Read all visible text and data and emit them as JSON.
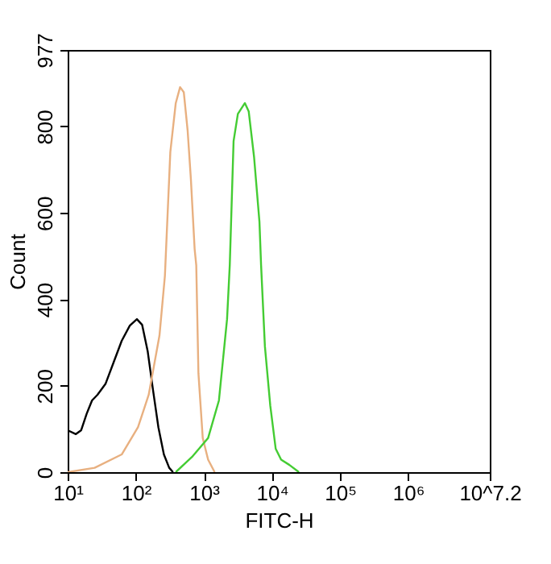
{
  "chart_data": {
    "type": "line",
    "xlabel": "FITC-H",
    "ylabel": "Count",
    "log": "x",
    "grid": false,
    "legend": false,
    "marker": "none",
    "line_style": "solid",
    "xlim": [
      10,
      15848932
    ],
    "ylim": [
      0,
      977
    ],
    "xticks": [
      {
        "value": 10,
        "label": "10¹"
      },
      {
        "value": 100,
        "label": "10²"
      },
      {
        "value": 1000,
        "label": "10³"
      },
      {
        "value": 10000,
        "label": "10⁴"
      },
      {
        "value": 100000,
        "label": "10⁵"
      },
      {
        "value": 1000000,
        "label": "10⁶"
      },
      {
        "value": 15848932,
        "label": "10^7.2"
      }
    ],
    "yticks": [
      0,
      200,
      400,
      600,
      800,
      977
    ],
    "series": [
      {
        "color": "#000000",
        "x": [
          10,
          13.2,
          15.8,
          19.0,
          22.8,
          27.4,
          35.9,
          47.3,
          62.2,
          81.8,
          104,
          124,
          150,
          179,
          215,
          259,
          310,
          353
        ],
        "values": [
          97,
          88,
          97,
          135,
          166,
          179,
          204,
          254,
          304,
          339,
          354,
          341,
          279,
          191,
          104,
          41,
          10,
          0
        ]
      },
      {
        "color": "#e8b080",
        "x": [
          10,
          24.9,
          62.2,
          108,
          155,
          223,
          268,
          322,
          387,
          448,
          508,
          578,
          645,
          733,
          774,
          833,
          964,
          1156,
          1443
        ],
        "values": [
          0,
          10,
          41,
          104,
          179,
          316,
          454,
          741,
          854,
          891,
          879,
          791,
          679,
          516,
          479,
          229,
          79,
          29,
          0
        ]
      },
      {
        "color": "#44cc33",
        "x": [
          387,
          669,
          1156,
          1667,
          2193,
          2404,
          2735,
          3162,
          4009,
          4561,
          5470,
          6561,
          6934,
          7889,
          9460,
          11370,
          13650,
          17950,
          24950
        ],
        "values": [
          0,
          35,
          79,
          166,
          354,
          479,
          766,
          829,
          854,
          835,
          729,
          579,
          479,
          291,
          154,
          54,
          29,
          17,
          0
        ]
      }
    ]
  }
}
